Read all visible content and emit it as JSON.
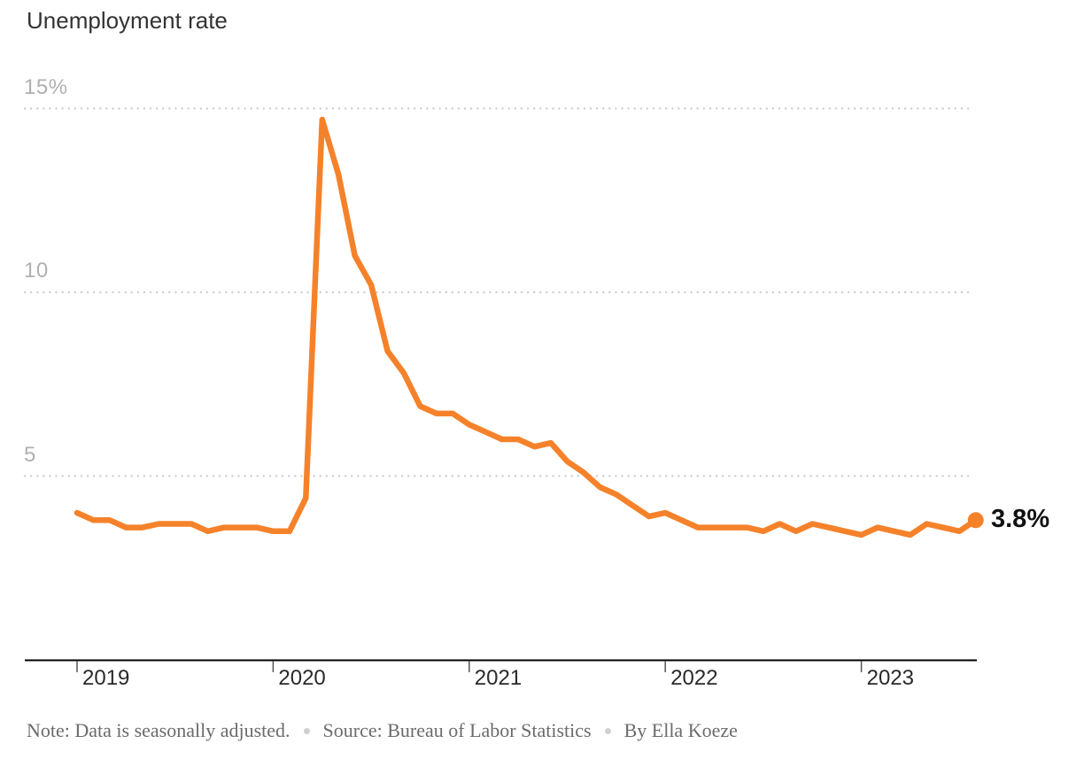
{
  "page": {
    "title": "Unemployment rate"
  },
  "chart_data": {
    "type": "line",
    "title": "Unemployment rate",
    "legend": "none",
    "grid": "dotted-horizontal",
    "y_axis": {
      "range": [
        0,
        15.9
      ],
      "ticks": [
        {
          "label": "15%",
          "value": 15
        },
        {
          "label": "10",
          "value": 10
        },
        {
          "label": "5",
          "value": 5
        }
      ]
    },
    "x_axis": {
      "ticks": [
        {
          "label": "2019",
          "month_index": 0
        },
        {
          "label": "2020",
          "month_index": 12
        },
        {
          "label": "2021",
          "month_index": 24
        },
        {
          "label": "2022",
          "month_index": 36
        },
        {
          "label": "2023",
          "month_index": 48
        }
      ]
    },
    "series": [
      {
        "name": "Unemployment rate",
        "frequency": "monthly",
        "start": "2019-01",
        "end": "2023-08",
        "unit": "percent",
        "values": [
          4.0,
          3.8,
          3.8,
          3.6,
          3.6,
          3.7,
          3.7,
          3.7,
          3.5,
          3.6,
          3.6,
          3.6,
          3.5,
          3.5,
          4.4,
          14.7,
          13.2,
          11.0,
          10.2,
          8.4,
          7.8,
          6.9,
          6.7,
          6.7,
          6.4,
          6.2,
          6.0,
          6.0,
          5.8,
          5.9,
          5.4,
          5.1,
          4.7,
          4.5,
          4.2,
          3.9,
          4.0,
          3.8,
          3.6,
          3.6,
          3.6,
          3.6,
          3.5,
          3.7,
          3.5,
          3.7,
          3.6,
          3.5,
          3.4,
          3.6,
          3.5,
          3.4,
          3.7,
          3.6,
          3.5,
          3.8
        ]
      }
    ],
    "end_label": "3.8%",
    "colors": {
      "line": "#f5822a",
      "end_dot": "#f5822a",
      "gridline": "#cfcfcf",
      "axis_line": "#000000",
      "tick_mark": "#555555",
      "x_label": "#2a2a2a",
      "y_label": "#b0b0b0",
      "end_label_text": "#121212"
    }
  },
  "footer": {
    "note": "Note: Data is seasonally adjusted.",
    "source": "Source: Bureau of Labor Statistics",
    "byline": "By Ella Koeze"
  }
}
